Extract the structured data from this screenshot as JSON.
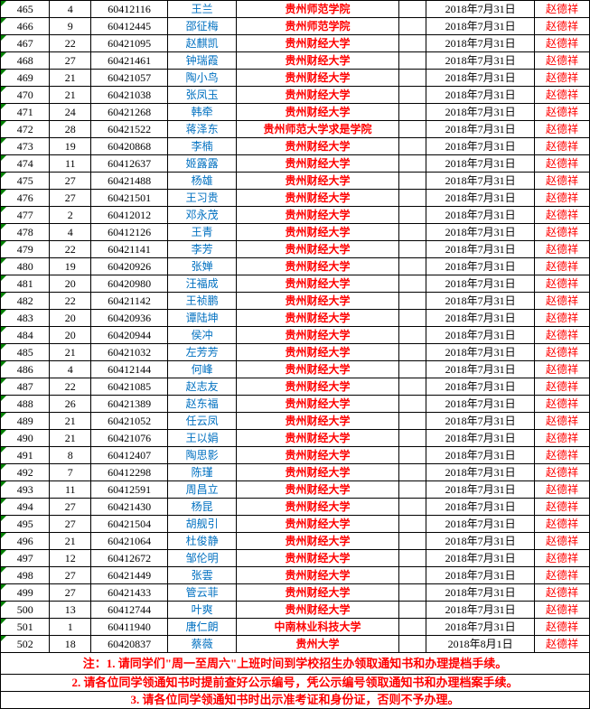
{
  "table": {
    "columns": [
      "col-a",
      "col-b",
      "col-c",
      "col-d",
      "col-e",
      "col-f",
      "col-g",
      "col-h"
    ],
    "rows": [
      {
        "a": "465",
        "b": "4",
        "c": "60412116",
        "d": "王兰",
        "e": "贵州师范学院",
        "f": "",
        "g": "2018年7月31日",
        "h": "赵德祥"
      },
      {
        "a": "466",
        "b": "9",
        "c": "60412445",
        "d": "邵征梅",
        "e": "贵州师范学院",
        "f": "",
        "g": "2018年7月31日",
        "h": "赵德祥"
      },
      {
        "a": "467",
        "b": "22",
        "c": "60421095",
        "d": "赵麒凯",
        "e": "贵州财经大学",
        "f": "",
        "g": "2018年7月31日",
        "h": "赵德祥"
      },
      {
        "a": "468",
        "b": "27",
        "c": "60421461",
        "d": "钟瑞霞",
        "e": "贵州财经大学",
        "f": "",
        "g": "2018年7月31日",
        "h": "赵德祥"
      },
      {
        "a": "469",
        "b": "21",
        "c": "60421057",
        "d": "陶小鸟",
        "e": "贵州财经大学",
        "f": "",
        "g": "2018年7月31日",
        "h": "赵德祥"
      },
      {
        "a": "470",
        "b": "21",
        "c": "60421038",
        "d": "张凤玉",
        "e": "贵州财经大学",
        "f": "",
        "g": "2018年7月31日",
        "h": "赵德祥"
      },
      {
        "a": "471",
        "b": "24",
        "c": "60421268",
        "d": "韩牵",
        "e": "贵州财经大学",
        "f": "",
        "g": "2018年7月31日",
        "h": "赵德祥"
      },
      {
        "a": "472",
        "b": "28",
        "c": "60421522",
        "d": "蒋泽东",
        "e": "贵州师范大学求是学院",
        "f": "",
        "g": "2018年7月31日",
        "h": "赵德祥"
      },
      {
        "a": "473",
        "b": "19",
        "c": "60420868",
        "d": "李楠",
        "e": "贵州财经大学",
        "f": "",
        "g": "2018年7月31日",
        "h": "赵德祥"
      },
      {
        "a": "474",
        "b": "11",
        "c": "60412637",
        "d": "姬露露",
        "e": "贵州财经大学",
        "f": "",
        "g": "2018年7月31日",
        "h": "赵德祥"
      },
      {
        "a": "475",
        "b": "27",
        "c": "60421488",
        "d": "杨雄",
        "e": "贵州财经大学",
        "f": "",
        "g": "2018年7月31日",
        "h": "赵德祥"
      },
      {
        "a": "476",
        "b": "27",
        "c": "60421501",
        "d": "王习贵",
        "e": "贵州财经大学",
        "f": "",
        "g": "2018年7月31日",
        "h": "赵德祥"
      },
      {
        "a": "477",
        "b": "2",
        "c": "60412012",
        "d": "邓永茂",
        "e": "贵州财经大学",
        "f": "",
        "g": "2018年7月31日",
        "h": "赵德祥"
      },
      {
        "a": "478",
        "b": "4",
        "c": "60412126",
        "d": "王青",
        "e": "贵州财经大学",
        "f": "",
        "g": "2018年7月31日",
        "h": "赵德祥"
      },
      {
        "a": "479",
        "b": "22",
        "c": "60421141",
        "d": "李芳",
        "e": "贵州财经大学",
        "f": "",
        "g": "2018年7月31日",
        "h": "赵德祥"
      },
      {
        "a": "480",
        "b": "19",
        "c": "60420926",
        "d": "张婵",
        "e": "贵州财经大学",
        "f": "",
        "g": "2018年7月31日",
        "h": "赵德祥"
      },
      {
        "a": "481",
        "b": "20",
        "c": "60420980",
        "d": "汪福成",
        "e": "贵州财经大学",
        "f": "",
        "g": "2018年7月31日",
        "h": "赵德祥"
      },
      {
        "a": "482",
        "b": "22",
        "c": "60421142",
        "d": "王祯鹏",
        "e": "贵州财经大学",
        "f": "",
        "g": "2018年7月31日",
        "h": "赵德祥"
      },
      {
        "a": "483",
        "b": "20",
        "c": "60420936",
        "d": "谭陆坤",
        "e": "贵州财经大学",
        "f": "",
        "g": "2018年7月31日",
        "h": "赵德祥"
      },
      {
        "a": "484",
        "b": "20",
        "c": "60420944",
        "d": "侯冲",
        "e": "贵州财经大学",
        "f": "",
        "g": "2018年7月31日",
        "h": "赵德祥"
      },
      {
        "a": "485",
        "b": "21",
        "c": "60421032",
        "d": "左芳芳",
        "e": "贵州财经大学",
        "f": "",
        "g": "2018年7月31日",
        "h": "赵德祥"
      },
      {
        "a": "486",
        "b": "4",
        "c": "60412144",
        "d": "何峰",
        "e": "贵州财经大学",
        "f": "",
        "g": "2018年7月31日",
        "h": "赵德祥"
      },
      {
        "a": "487",
        "b": "22",
        "c": "60421085",
        "d": "赵志友",
        "e": "贵州财经大学",
        "f": "",
        "g": "2018年7月31日",
        "h": "赵德祥"
      },
      {
        "a": "488",
        "b": "26",
        "c": "60421389",
        "d": "赵东福",
        "e": "贵州财经大学",
        "f": "",
        "g": "2018年7月31日",
        "h": "赵德祥"
      },
      {
        "a": "489",
        "b": "21",
        "c": "60421052",
        "d": "任云凤",
        "e": "贵州财经大学",
        "f": "",
        "g": "2018年7月31日",
        "h": "赵德祥"
      },
      {
        "a": "490",
        "b": "21",
        "c": "60421076",
        "d": "王以娟",
        "e": "贵州财经大学",
        "f": "",
        "g": "2018年7月31日",
        "h": "赵德祥"
      },
      {
        "a": "491",
        "b": "8",
        "c": "60412407",
        "d": "陶思影",
        "e": "贵州财经大学",
        "f": "",
        "g": "2018年7月31日",
        "h": "赵德祥"
      },
      {
        "a": "492",
        "b": "7",
        "c": "60412298",
        "d": "陈瑾",
        "e": "贵州财经大学",
        "f": "",
        "g": "2018年7月31日",
        "h": "赵德祥"
      },
      {
        "a": "493",
        "b": "11",
        "c": "60412591",
        "d": "周昌立",
        "e": "贵州财经大学",
        "f": "",
        "g": "2018年7月31日",
        "h": "赵德祥"
      },
      {
        "a": "494",
        "b": "27",
        "c": "60421430",
        "d": "杨昆",
        "e": "贵州财经大学",
        "f": "",
        "g": "2018年7月31日",
        "h": "赵德祥"
      },
      {
        "a": "495",
        "b": "27",
        "c": "60421504",
        "d": "胡舰引",
        "e": "贵州财经大学",
        "f": "",
        "g": "2018年7月31日",
        "h": "赵德祥"
      },
      {
        "a": "496",
        "b": "21",
        "c": "60421064",
        "d": "杜俊静",
        "e": "贵州财经大学",
        "f": "",
        "g": "2018年7月31日",
        "h": "赵德祥"
      },
      {
        "a": "497",
        "b": "12",
        "c": "60412672",
        "d": "邹伦明",
        "e": "贵州财经大学",
        "f": "",
        "g": "2018年7月31日",
        "h": "赵德祥"
      },
      {
        "a": "498",
        "b": "27",
        "c": "60421449",
        "d": "张雲",
        "e": "贵州财经大学",
        "f": "",
        "g": "2018年7月31日",
        "h": "赵德祥"
      },
      {
        "a": "499",
        "b": "27",
        "c": "60421433",
        "d": "管云菲",
        "e": "贵州财经大学",
        "f": "",
        "g": "2018年7月31日",
        "h": "赵德祥"
      },
      {
        "a": "500",
        "b": "13",
        "c": "60412744",
        "d": "叶爽",
        "e": "贵州财经大学",
        "f": "",
        "g": "2018年7月31日",
        "h": "赵德祥"
      },
      {
        "a": "501",
        "b": "1",
        "c": "60411940",
        "d": "唐仁朗",
        "e": "中南林业科技大学",
        "f": "",
        "g": "2018年7月31日",
        "h": "赵德祥"
      },
      {
        "a": "502",
        "b": "18",
        "c": "60420837",
        "d": "蔡薇",
        "e": "贵州大学",
        "f": "",
        "g": "2018年8月1日",
        "h": "赵德祥"
      }
    ],
    "footer": [
      "注：1. 请同学们\"周一至周六\"上班时间到学校招生办领取通知书和办理提档手续。",
      "2. 请各位同学领通知书时提前查好公示编号，凭公示编号领取通知书和办理档案手续。",
      "3. 请各位同学领通知书时出示准考证和身份证，否则不予办理。"
    ]
  },
  "style": {
    "name_color": "#0070c0",
    "school_color": "#ff0000",
    "contact_color": "#ff0000",
    "text_color": "#000000",
    "border_color": "#000000",
    "mark_color": "#008000",
    "background": "#ffffff"
  }
}
